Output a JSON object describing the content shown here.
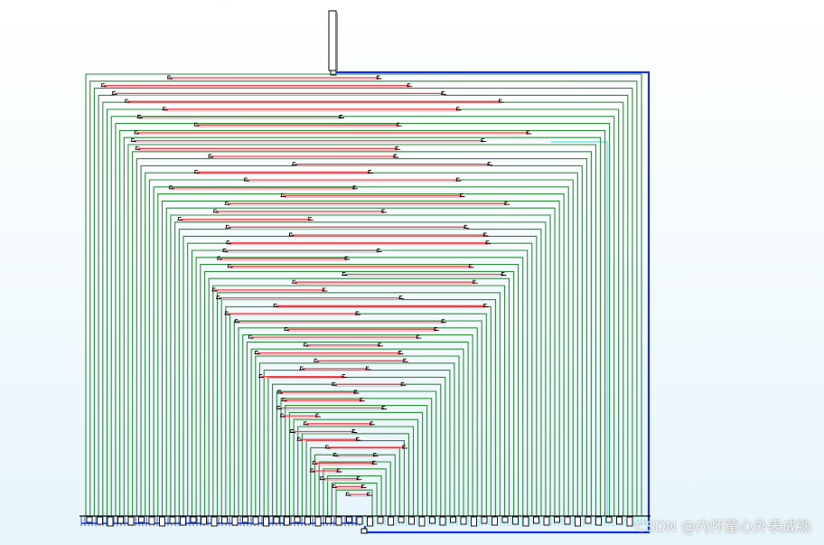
{
  "watermark": "CSDN @内怀童心外表成熟",
  "colors": {
    "tree": "#2e8b3a",
    "link": "#e8484f",
    "trunk": "#1433d6",
    "return": "#6fe6e6",
    "box": "#000000"
  }
}
